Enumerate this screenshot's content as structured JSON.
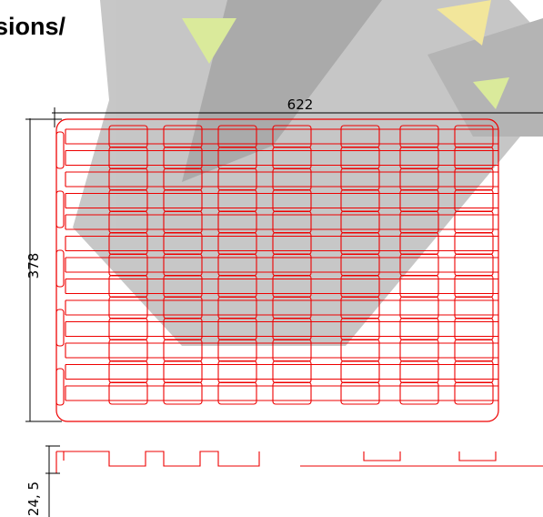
{
  "header": {
    "title": "sions/"
  },
  "dimensions": {
    "width": "622",
    "height": "378",
    "depth": "24, 5"
  }
}
